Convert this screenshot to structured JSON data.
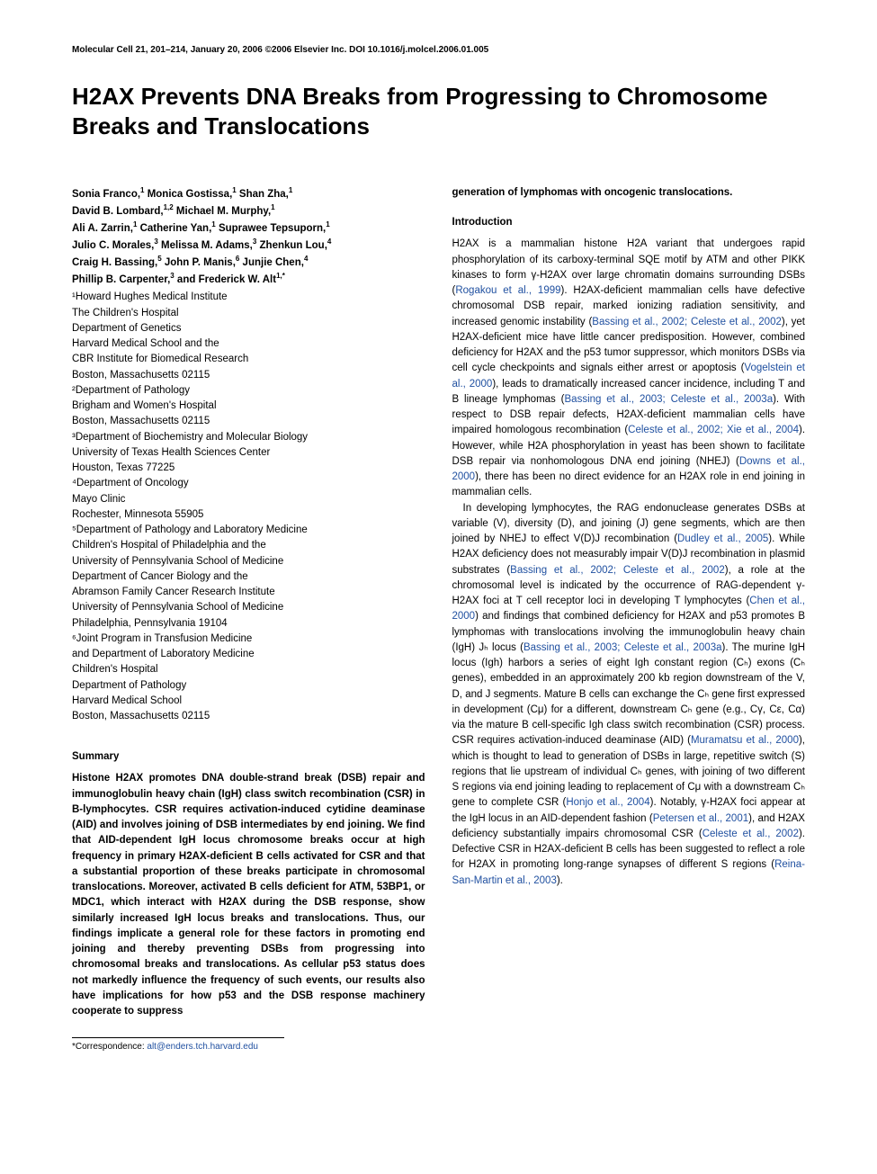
{
  "journal_line": "Molecular Cell 21, 201–214, January 20, 2006 ©2006 Elsevier Inc.   DOI 10.1016/j.molcel.2006.01.005",
  "title": "H2AX Prevents DNA Breaks from Progressing to Chromosome Breaks and Translocations",
  "authors_html": "Sonia Franco,<sup>1</sup> Monica Gostissa,<sup>1</sup> Shan Zha,<sup>1</sup><br>David B. Lombard,<sup>1,2</sup> Michael M. Murphy,<sup>1</sup><br>Ali A. Zarrin,<sup>1</sup> Catherine Yan,<sup>1</sup> Suprawee Tepsuporn,<sup>1</sup><br>Julio C. Morales,<sup>3</sup> Melissa M. Adams,<sup>3</sup> Zhenkun Lou,<sup>4</sup><br>Craig H. Bassing,<sup>5</sup> John P. Manis,<sup>6</sup> Junjie Chen,<sup>4</sup><br>Phillip B. Carpenter,<sup>3</sup> and Frederick W. Alt<sup>1,*</sup>",
  "affiliations": "¹Howard Hughes Medical Institute\nThe Children's Hospital\nDepartment of Genetics\nHarvard Medical School and the\nCBR Institute for Biomedical Research\nBoston, Massachusetts 02115\n²Department of Pathology\nBrigham and Women's Hospital\nBoston, Massachusetts 02115\n³Department of Biochemistry and Molecular Biology\nUniversity of Texas Health Sciences Center\nHouston, Texas 77225\n⁴Department of Oncology\nMayo Clinic\nRochester, Minnesota 55905\n⁵Department of Pathology and Laboratory Medicine\nChildren's Hospital of Philadelphia and the\nUniversity of Pennsylvania School of Medicine\nDepartment of Cancer Biology and the\nAbramson Family Cancer Research Institute\nUniversity of Pennsylvania School of Medicine\nPhiladelphia, Pennsylvania 19104\n⁶Joint Program in Transfusion Medicine\n  and Department of Laboratory Medicine\nChildren's Hospital\nDepartment of Pathology\nHarvard Medical School\nBoston, Massachusetts 02115",
  "summary_heading": "Summary",
  "summary_text": "Histone H2AX promotes DNA double-strand break (DSB) repair and immunoglobulin heavy chain (IgH) class switch recombination (CSR) in B-lymphocytes. CSR requires activation-induced cytidine deaminase (AID) and involves joining of DSB intermediates by end joining. We find that AID-dependent IgH locus chromosome breaks occur at high frequency in primary H2AX-deficient B cells activated for CSR and that a substantial proportion of these breaks participate in chromosomal translocations. Moreover, activated B cells deficient for ATM, 53BP1, or MDC1, which interact with H2AX during the DSB response, show similarly increased IgH locus breaks and translocations. Thus, our findings implicate a general role for these factors in promoting end joining and thereby preventing DSBs from progressing into chromosomal breaks and translocations. As cellular p53 status does not markedly influence the frequency of such events, our results also have implications for how p53 and the DSB response machinery cooperate to suppress",
  "col2_continuation": "generation of lymphomas with oncogenic translocations.",
  "intro_heading": "Introduction",
  "intro_p1": "H2AX is a mammalian histone H2A variant that undergoes rapid phosphorylation of its carboxy-terminal SQE motif by ATM and other PIKK kinases to form γ-H2AX over large chromatin domains surrounding DSBs (Rogakou et al., 1999). H2AX-deficient mammalian cells have defective chromosomal DSB repair, marked ionizing radiation sensitivity, and increased genomic instability (Bassing et al., 2002; Celeste et al., 2002), yet H2AX-deficient mice have little cancer predisposition. However, combined deficiency for H2AX and the p53 tumor suppressor, which monitors DSBs via cell cycle checkpoints and signals either arrest or apoptosis (Vogelstein et al., 2000), leads to dramatically increased cancer incidence, including T and B lineage lymphomas (Bassing et al., 2003; Celeste et al., 2003a). With respect to DSB repair defects, H2AX-deficient mammalian cells have impaired homologous recombination (Celeste et al., 2002; Xie et al., 2004). However, while H2A phosphorylation in yeast has been shown to facilitate DSB repair via nonhomologous DNA end joining (NHEJ) (Downs et al., 2000), there has been no direct evidence for an H2AX role in end joining in mammalian cells.",
  "intro_p2": "In developing lymphocytes, the RAG endonuclease generates DSBs at variable (V), diversity (D), and joining (J) gene segments, which are then joined by NHEJ to effect V(D)J recombination (Dudley et al., 2005). While H2AX deficiency does not measurably impair V(D)J recombination in plasmid substrates (Bassing et al., 2002; Celeste et al., 2002), a role at the chromosomal level is indicated by the occurrence of RAG-dependent γ-H2AX foci at T cell receptor loci in developing T lymphocytes (Chen et al., 2000) and findings that combined deficiency for H2AX and p53 promotes B lymphomas with translocations involving the immunoglobulin heavy chain (IgH) Jₕ locus (Bassing et al., 2003; Celeste et al., 2003a). The murine IgH locus (Igh) harbors a series of eight Igh constant region (Cₕ) exons (Cₕ genes), embedded in an approximately 200 kb region downstream of the V, D, and J segments. Mature B cells can exchange the Cₕ gene first expressed in development (Cμ) for a different, downstream Cₕ gene (e.g., Cγ, Cε, Cα) via the mature B cell-specific Igh class switch recombination (CSR) process. CSR requires activation-induced deaminase (AID) (Muramatsu et al., 2000), which is thought to lead to generation of DSBs in large, repetitive switch (S) regions that lie upstream of individual Cₕ genes, with joining of two different S regions via end joining leading to replacement of Cμ with a downstream Cₕ gene to complete CSR (Honjo et al., 2004). Notably, γ-H2AX foci appear at the IgH locus in an AID-dependent fashion (Petersen et al., 2001), and H2AX deficiency substantially impairs chromosomal CSR (Celeste et al., 2002). Defective CSR in H2AX-deficient B cells has been suggested to reflect a role for H2AX in promoting long-range synapses of different S regions (Reina-San-Martin et al., 2003).",
  "correspondence": "*Correspondence: alt@enders.tch.harvard.edu",
  "link_color": "#2050a0",
  "text_color": "#000000",
  "background_color": "#ffffff"
}
